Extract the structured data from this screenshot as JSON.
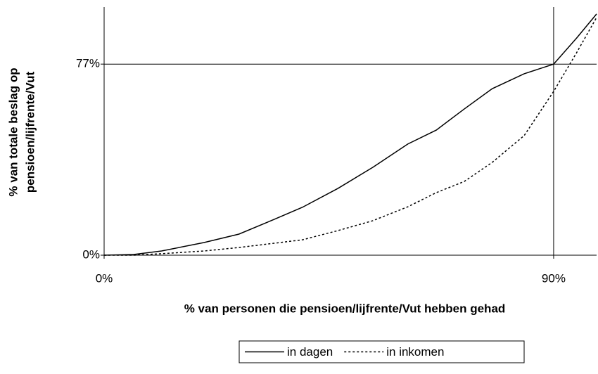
{
  "chart_data": {
    "type": "line",
    "xlabel": "% van personen die pensioen/lijfrente/Vut hebben gehad",
    "ylabel": [
      "% van totale beslag op",
      "pensioen/lijfrente/Vut"
    ],
    "x": [
      0,
      5.9,
      11.5,
      20,
      27,
      34,
      39.7,
      46.8,
      53.8,
      60.8,
      66.5,
      72.1,
      77.7,
      84.1,
      90,
      94.6,
      98.6
    ],
    "series": [
      {
        "name": "in dagen",
        "color": "#000000",
        "dash": "solid",
        "values": [
          0,
          0.3,
          1.7,
          5.1,
          8.5,
          14.4,
          19.3,
          26.9,
          35.4,
          44.8,
          50.4,
          58.9,
          67.1,
          73.1,
          77,
          87.5,
          97.2
        ]
      },
      {
        "name": "in inkomen",
        "color": "#000000",
        "dash": "dashed",
        "values": [
          0,
          0,
          0.6,
          1.7,
          3.1,
          4.8,
          6.2,
          9.9,
          13.9,
          19.5,
          25.2,
          29.7,
          37.4,
          48.2,
          66,
          81.6,
          95.8
        ]
      }
    ],
    "xlim": [
      0,
      98.6
    ],
    "ylim": [
      0,
      100
    ],
    "xticks": [
      {
        "value": 0,
        "label": "0%"
      },
      {
        "value": 90,
        "label": "90%"
      }
    ],
    "yticks": [
      {
        "value": 0,
        "label": "0%"
      },
      {
        "value": 77,
        "label": "77%"
      }
    ],
    "grid": true,
    "legend": "bottom"
  }
}
